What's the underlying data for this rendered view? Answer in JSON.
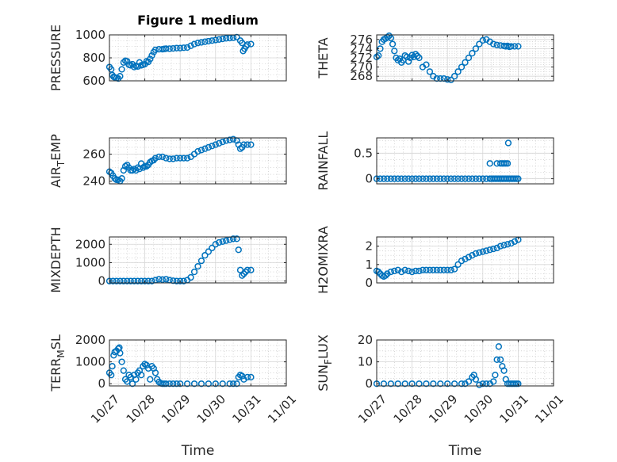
{
  "chart_data": [
    {
      "type": "scatter",
      "title": "Figure 1 medium",
      "ylabel": "PRESSURE",
      "ylim": [
        600,
        1000
      ],
      "yticks": [
        600,
        800,
        1000
      ],
      "xlim": [
        0,
        5
      ],
      "xticks": [
        "10/27",
        "10/28",
        "10/29",
        "10/30",
        "10/31",
        "11/01"
      ],
      "xtick_labels_visible": false,
      "grid": true,
      "marker_color": "#0072BD",
      "series": [
        {
          "x": [
            0,
            0.05,
            0.08,
            0.12,
            0.15,
            0.2,
            0.25,
            0.3,
            0.35,
            0.4,
            0.45,
            0.5,
            0.55,
            0.6,
            0.65,
            0.7,
            0.75,
            0.8,
            0.85,
            0.9,
            0.95,
            1.0,
            1.05,
            1.1,
            1.15,
            1.2,
            1.25,
            1.3,
            1.4,
            1.5,
            1.55,
            1.6,
            1.7,
            1.8,
            1.9,
            2.0,
            2.1,
            2.2,
            2.3,
            2.4,
            2.5,
            2.6,
            2.7,
            2.8,
            2.9,
            3.0,
            3.1,
            3.2,
            3.3,
            3.4,
            3.5,
            3.6,
            3.7,
            3.75,
            3.78,
            3.82,
            3.86,
            3.9,
            4.0
          ],
          "y": [
            720,
            700,
            650,
            635,
            630,
            625,
            620,
            640,
            700,
            760,
            775,
            770,
            740,
            735,
            745,
            720,
            730,
            725,
            760,
            735,
            740,
            745,
            770,
            765,
            790,
            820,
            850,
            870,
            875,
            875,
            878,
            880,
            880,
            882,
            885,
            885,
            888,
            890,
            905,
            920,
            930,
            935,
            940,
            945,
            950,
            955,
            960,
            965,
            970,
            972,
            975,
            980,
            950,
            930,
            860,
            880,
            900,
            915,
            920
          ]
        }
      ]
    },
    {
      "type": "scatter",
      "ylabel": "THETA",
      "ylim": [
        267,
        277
      ],
      "yticks": [
        268,
        270,
        272,
        274,
        276
      ],
      "xlim": [
        0,
        5
      ],
      "xticks": [
        "10/27",
        "10/28",
        "10/29",
        "10/30",
        "10/31",
        "11/01"
      ],
      "xtick_labels_visible": false,
      "grid": true,
      "marker_color": "#0072BD",
      "series": [
        {
          "x": [
            0,
            0.05,
            0.1,
            0.15,
            0.2,
            0.25,
            0.3,
            0.35,
            0.4,
            0.45,
            0.5,
            0.55,
            0.6,
            0.65,
            0.7,
            0.75,
            0.8,
            0.85,
            0.9,
            0.95,
            1.0,
            1.05,
            1.1,
            1.15,
            1.2,
            1.3,
            1.4,
            1.5,
            1.6,
            1.7,
            1.8,
            1.9,
            2.0,
            2.1,
            2.2,
            2.3,
            2.4,
            2.5,
            2.6,
            2.7,
            2.8,
            2.9,
            3.0,
            3.1,
            3.2,
            3.3,
            3.4,
            3.5,
            3.6,
            3.65,
            3.7,
            3.75,
            3.8,
            3.9,
            4.0
          ],
          "y": [
            272.2,
            272.5,
            274,
            275.5,
            276,
            276.2,
            276.5,
            276.8,
            276.3,
            275,
            273.5,
            272,
            271.5,
            271.8,
            271,
            271.5,
            272.5,
            272.2,
            271.2,
            272,
            272.6,
            272.2,
            272.8,
            272.4,
            272,
            270,
            270.5,
            269,
            268,
            267.5,
            267.5,
            267.5,
            267.3,
            267.2,
            268,
            269,
            270,
            271,
            272,
            273,
            274,
            275,
            275.8,
            276,
            275.5,
            275,
            274.8,
            274.7,
            274.6,
            274.5,
            274.6,
            274.4,
            274.5,
            274.5,
            274.5
          ]
        }
      ]
    },
    {
      "type": "scatter",
      "ylabel": "AIR_TEMP",
      "ylim": [
        238,
        272
      ],
      "yticks": [
        240,
        260
      ],
      "xlim": [
        0,
        5
      ],
      "xticks": [
        "10/27",
        "10/28",
        "10/29",
        "10/30",
        "10/31",
        "11/01"
      ],
      "xtick_labels_visible": false,
      "grid": true,
      "marker_color": "#0072BD",
      "series": [
        {
          "x": [
            0,
            0.05,
            0.1,
            0.15,
            0.2,
            0.25,
            0.3,
            0.35,
            0.4,
            0.45,
            0.5,
            0.55,
            0.6,
            0.65,
            0.7,
            0.75,
            0.8,
            0.85,
            0.9,
            0.95,
            1.0,
            1.05,
            1.1,
            1.15,
            1.2,
            1.25,
            1.3,
            1.4,
            1.5,
            1.6,
            1.7,
            1.8,
            1.9,
            2.0,
            2.1,
            2.2,
            2.3,
            2.4,
            2.5,
            2.6,
            2.7,
            2.8,
            2.9,
            3.0,
            3.1,
            3.2,
            3.3,
            3.4,
            3.5,
            3.6,
            3.65,
            3.7,
            3.75,
            3.8,
            3.9,
            4.0
          ],
          "y": [
            247,
            246,
            244,
            242,
            241,
            241,
            240,
            242,
            248,
            251,
            252,
            250,
            248,
            248,
            249,
            248,
            250,
            249,
            253,
            250,
            251,
            251,
            252,
            254,
            255,
            255.5,
            257,
            258,
            258,
            257,
            256.5,
            256.5,
            257,
            257,
            257,
            257,
            258,
            260,
            262,
            263,
            264,
            265,
            266,
            267,
            268,
            269,
            270,
            270.5,
            271,
            270,
            267,
            264,
            265,
            267,
            267,
            267
          ]
        }
      ]
    },
    {
      "type": "scatter",
      "ylabel": "RAINFALL",
      "ylim": [
        -0.1,
        0.8
      ],
      "yticks": [
        0,
        0.5
      ],
      "xlim": [
        0,
        5
      ],
      "xticks": [
        "10/27",
        "10/28",
        "10/29",
        "10/30",
        "10/31",
        "11/01"
      ],
      "xtick_labels_visible": false,
      "grid": true,
      "marker_color": "#0072BD",
      "series": [
        {
          "x": [
            0,
            0.1,
            0.2,
            0.3,
            0.4,
            0.5,
            0.6,
            0.7,
            0.8,
            0.9,
            1.0,
            1.1,
            1.2,
            1.3,
            1.4,
            1.5,
            1.6,
            1.7,
            1.8,
            1.9,
            2.0,
            2.1,
            2.2,
            2.3,
            2.4,
            2.5,
            2.6,
            2.7,
            2.8,
            2.9,
            3.0,
            3.1,
            3.2,
            3.25,
            3.3,
            3.35,
            3.4,
            3.45,
            3.5,
            3.55,
            3.6,
            3.65,
            3.7,
            3.75,
            3.8,
            3.85,
            3.9,
            3.95,
            4.0,
            3.2,
            3.4,
            3.5,
            3.55,
            3.6,
            3.65,
            3.7,
            3.72
          ],
          "y": [
            0,
            0,
            0,
            0,
            0,
            0,
            0,
            0,
            0,
            0,
            0,
            0,
            0,
            0,
            0,
            0,
            0,
            0,
            0,
            0,
            0,
            0,
            0,
            0,
            0,
            0,
            0,
            0,
            0,
            0,
            0,
            0,
            0,
            0,
            0,
            0,
            0,
            0,
            0,
            0,
            0,
            0,
            0,
            0,
            0,
            0,
            0,
            0,
            0,
            0.3,
            0.3,
            0.3,
            0.3,
            0.3,
            0.3,
            0.3,
            0.7
          ]
        }
      ]
    },
    {
      "type": "scatter",
      "ylabel": "MIXDEPTH",
      "ylim": [
        -100,
        2400
      ],
      "yticks": [
        0,
        1000,
        2000
      ],
      "xlim": [
        0,
        5
      ],
      "xticks": [
        "10/27",
        "10/28",
        "10/29",
        "10/30",
        "10/31",
        "11/01"
      ],
      "xtick_labels_visible": false,
      "grid": true,
      "marker_color": "#0072BD",
      "series": [
        {
          "x": [
            0,
            0.1,
            0.2,
            0.3,
            0.4,
            0.5,
            0.6,
            0.7,
            0.8,
            0.9,
            1.0,
            1.1,
            1.2,
            1.3,
            1.4,
            1.5,
            1.6,
            1.7,
            1.8,
            1.9,
            2.0,
            2.1,
            2.2,
            2.3,
            2.4,
            2.5,
            2.6,
            2.7,
            2.8,
            2.9,
            3.0,
            3.1,
            3.2,
            3.3,
            3.4,
            3.5,
            3.6,
            3.65,
            3.7,
            3.75,
            3.8,
            3.85,
            3.9,
            4.0
          ],
          "y": [
            0,
            0,
            0,
            0,
            0,
            0,
            0,
            0,
            0,
            0,
            0,
            0,
            0,
            50,
            100,
            80,
            100,
            50,
            20,
            0,
            0,
            0,
            50,
            200,
            500,
            800,
            1100,
            1400,
            1600,
            1800,
            2000,
            2100,
            2150,
            2200,
            2250,
            2300,
            2300,
            1700,
            600,
            300,
            400,
            500,
            600,
            600
          ]
        }
      ]
    },
    {
      "type": "scatter",
      "ylabel": "H2OMIXRA",
      "ylim": [
        0,
        2.5
      ],
      "yticks": [
        0,
        1,
        2
      ],
      "xlim": [
        0,
        5
      ],
      "xticks": [
        "10/27",
        "10/28",
        "10/29",
        "10/30",
        "10/31",
        "11/01"
      ],
      "xtick_labels_visible": false,
      "grid": true,
      "marker_color": "#0072BD",
      "series": [
        {
          "x": [
            0,
            0.05,
            0.1,
            0.15,
            0.2,
            0.25,
            0.3,
            0.4,
            0.5,
            0.6,
            0.7,
            0.8,
            0.9,
            1.0,
            1.1,
            1.2,
            1.3,
            1.4,
            1.5,
            1.6,
            1.7,
            1.8,
            1.9,
            2.0,
            2.1,
            2.2,
            2.3,
            2.4,
            2.5,
            2.6,
            2.7,
            2.8,
            2.9,
            3.0,
            3.1,
            3.2,
            3.3,
            3.4,
            3.5,
            3.6,
            3.7,
            3.8,
            3.9,
            4.0
          ],
          "y": [
            0.65,
            0.6,
            0.5,
            0.4,
            0.35,
            0.4,
            0.5,
            0.6,
            0.65,
            0.7,
            0.6,
            0.7,
            0.65,
            0.6,
            0.65,
            0.65,
            0.7,
            0.7,
            0.7,
            0.7,
            0.7,
            0.7,
            0.7,
            0.7,
            0.7,
            0.75,
            1.0,
            1.2,
            1.3,
            1.4,
            1.5,
            1.6,
            1.65,
            1.7,
            1.75,
            1.8,
            1.85,
            1.9,
            2.0,
            2.05,
            2.1,
            2.15,
            2.25,
            2.35
          ]
        }
      ]
    },
    {
      "type": "scatter",
      "ylabel": "TERR_MSL",
      "ylim": [
        -100,
        2000
      ],
      "yticks": [
        0,
        1000,
        2000
      ],
      "xlim": [
        0,
        5
      ],
      "xticks": [
        "10/27",
        "10/28",
        "10/29",
        "10/30",
        "10/31",
        "11/01"
      ],
      "xtick_labels": [
        "10/27",
        "10/28",
        "10/29",
        "10/30",
        "10/31",
        "11/01"
      ],
      "xlabel": "Time",
      "grid": true,
      "marker_color": "#0072BD",
      "series": [
        {
          "x": [
            0,
            0.05,
            0.08,
            0.12,
            0.15,
            0.2,
            0.25,
            0.28,
            0.3,
            0.35,
            0.4,
            0.45,
            0.5,
            0.55,
            0.6,
            0.65,
            0.7,
            0.75,
            0.8,
            0.85,
            0.9,
            0.95,
            1.0,
            1.05,
            1.1,
            1.15,
            1.2,
            1.25,
            1.3,
            1.35,
            1.4,
            1.45,
            1.5,
            1.55,
            1.6,
            1.7,
            1.8,
            1.9,
            2.0,
            2.2,
            2.4,
            2.6,
            2.8,
            3.0,
            3.2,
            3.4,
            3.5,
            3.6,
            3.65,
            3.7,
            3.75,
            3.8,
            3.9,
            4.0
          ],
          "y": [
            500,
            400,
            800,
            1300,
            1450,
            1500,
            1600,
            1650,
            1400,
            1000,
            600,
            200,
            100,
            400,
            300,
            0,
            400,
            200,
            500,
            600,
            400,
            800,
            900,
            850,
            700,
            200,
            800,
            700,
            500,
            200,
            80,
            20,
            0,
            0,
            0,
            0,
            0,
            0,
            0,
            0,
            0,
            0,
            0,
            0,
            0,
            0,
            0,
            0,
            300,
            400,
            350,
            200,
            300,
            300
          ]
        }
      ]
    },
    {
      "type": "scatter",
      "ylabel": "SUN_FLUX",
      "ylim": [
        -1,
        20
      ],
      "yticks": [
        0,
        10,
        20
      ],
      "xlim": [
        0,
        5
      ],
      "xticks": [
        "10/27",
        "10/28",
        "10/29",
        "10/30",
        "10/31",
        "11/01"
      ],
      "xtick_labels": [
        "10/27",
        "10/28",
        "10/29",
        "10/30",
        "10/31",
        "11/01"
      ],
      "xlabel": "Time",
      "grid": true,
      "marker_color": "#0072BD",
      "series": [
        {
          "x": [
            0,
            0.2,
            0.4,
            0.6,
            0.8,
            1.0,
            1.2,
            1.4,
            1.6,
            1.8,
            2.0,
            2.2,
            2.4,
            2.5,
            2.6,
            2.7,
            2.75,
            2.8,
            2.9,
            3.0,
            3.1,
            3.2,
            3.3,
            3.35,
            3.4,
            3.45,
            3.5,
            3.55,
            3.6,
            3.65,
            3.7,
            3.75,
            3.8,
            3.85,
            3.9,
            3.95,
            4.0
          ],
          "y": [
            0,
            0,
            0,
            0,
            0,
            0,
            0,
            0,
            0,
            0,
            0,
            0,
            0,
            0,
            1,
            3,
            4,
            2,
            -0.5,
            0,
            0,
            0,
            1,
            4,
            11,
            17,
            11,
            8,
            6,
            2,
            0,
            0,
            0,
            0,
            0,
            0,
            0
          ]
        }
      ]
    }
  ]
}
